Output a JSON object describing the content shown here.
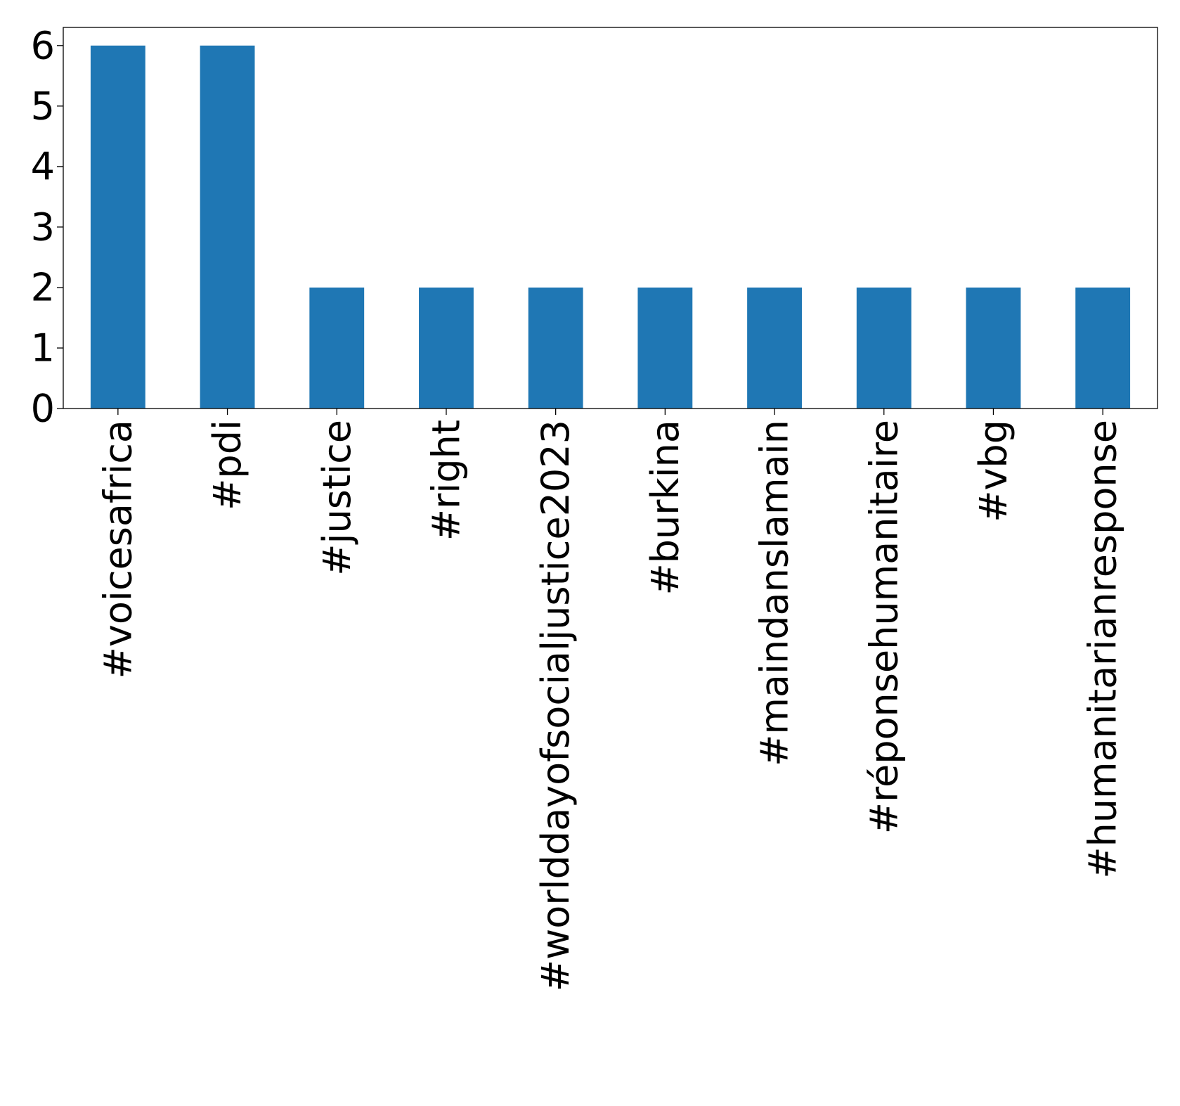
{
  "chart_data": {
    "type": "bar",
    "title": "",
    "xlabel": "",
    "ylabel": "",
    "categories": [
      "#voicesafrica",
      "#pdi",
      "#justice",
      "#right",
      "#worlddayofsocialjustice2023",
      "#burkina",
      "#maindanslamain",
      "#réponsehumanitaire",
      "#vbg",
      "#humanitarianresponse"
    ],
    "values": [
      6,
      6,
      2,
      2,
      2,
      2,
      2,
      2,
      2,
      2
    ],
    "ylim": [
      0,
      6.3
    ],
    "yticks": [
      "0",
      "1",
      "2",
      "3",
      "4",
      "5",
      "6"
    ],
    "grid": false,
    "legend": "none",
    "bar_color": "#1f77b4"
  }
}
